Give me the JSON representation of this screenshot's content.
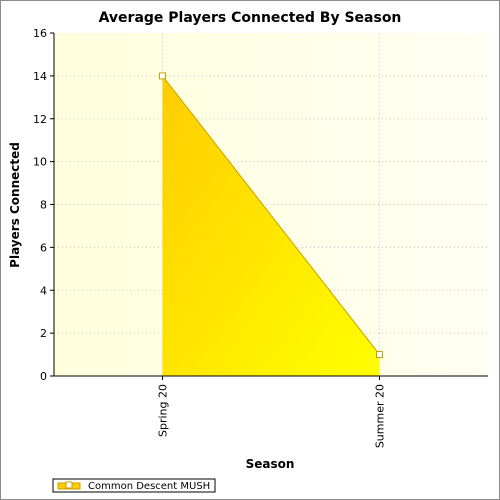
{
  "chart_data": {
    "type": "area",
    "title": "Average Players Connected By Season",
    "xlabel": "Season",
    "ylabel": "Players Connected",
    "categories": [
      "Spring 20",
      "Summer 20"
    ],
    "series": [
      {
        "name": "Common Descent MUSH",
        "values": [
          14,
          1
        ]
      }
    ],
    "ylim": [
      0,
      16
    ],
    "yticks": [
      "0",
      "2",
      "4",
      "6",
      "8",
      "10",
      "12",
      "14",
      "16"
    ],
    "grid": true,
    "legend_position": "bottom-left",
    "colors": {
      "fill_start": "#ffcc00",
      "fill_end": "#ffff00",
      "line": "#c8a000",
      "plot_bg_left": "#ffffdd",
      "plot_bg_right": "#fffff2"
    }
  }
}
